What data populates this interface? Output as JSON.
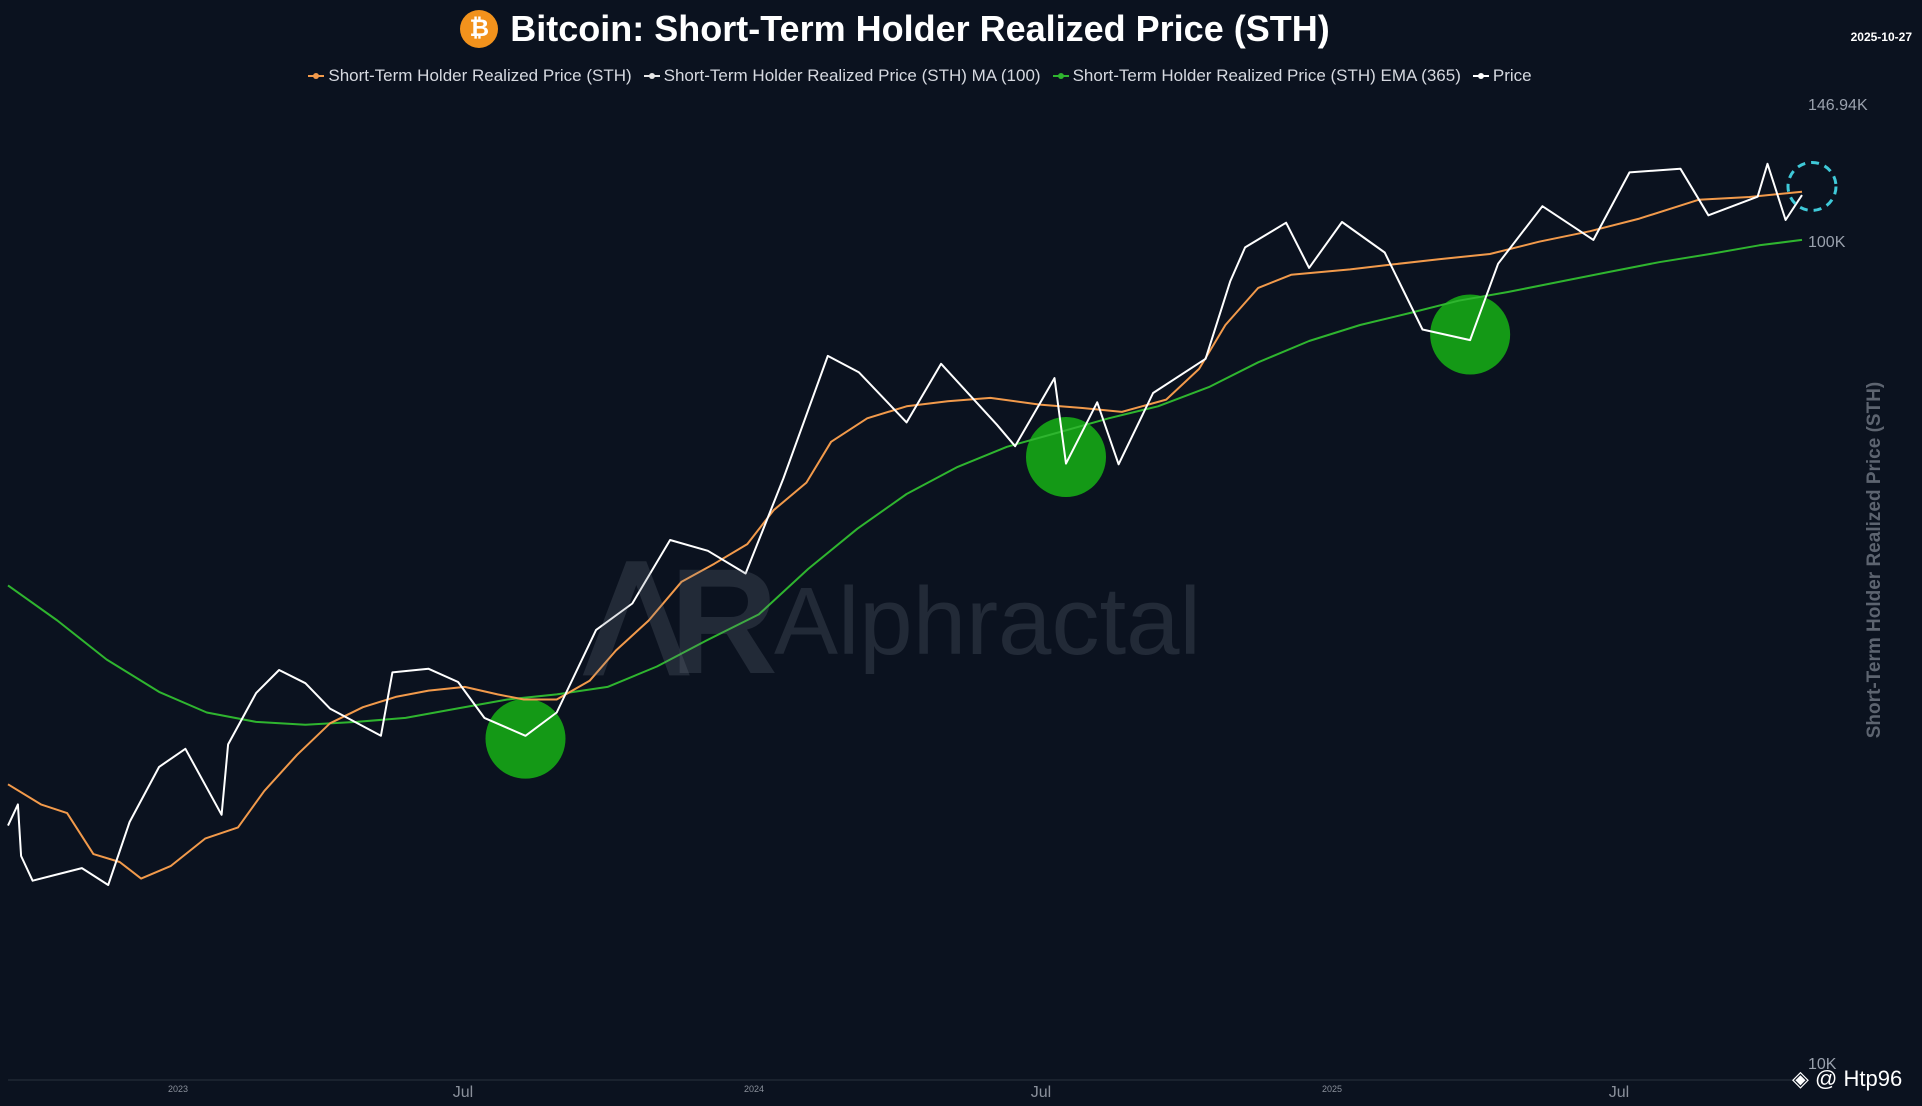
{
  "chart_data": {
    "type": "line",
    "title": "Bitcoin: Short-Term Holder Realized Price (STH)",
    "date": "2025-10-27",
    "ylabel": "Short-Term Holder Realized Price (STH)",
    "y_scale": "log",
    "ylim": [
      10000,
      146940
    ],
    "y_ticks": [
      "146.94K",
      "100K",
      "10K"
    ],
    "x_ticks": [
      "2023",
      "Jul",
      "2024",
      "Jul",
      "2025",
      "Jul"
    ],
    "x_tick_dates": [
      "2023-01-01",
      "2023-07-01",
      "2024-01-01",
      "2024-07-01",
      "2025-01-01",
      "2025-07-01"
    ],
    "xlim": [
      "2022-10-31",
      "2025-10-27"
    ],
    "legend_position": "top-center",
    "series": [
      {
        "name": "Short-Term Holder Realized Price (STH)",
        "color": "#f29a4b",
        "points": [
          [
            "2022-10-31",
            22000
          ],
          [
            "2022-11-20",
            20800
          ],
          [
            "2022-12-06",
            20300
          ],
          [
            "2022-12-22",
            18100
          ],
          [
            "2023-01-07",
            17700
          ],
          [
            "2023-01-20",
            16900
          ],
          [
            "2023-02-07",
            17500
          ],
          [
            "2023-02-28",
            18900
          ],
          [
            "2023-03-20",
            19500
          ],
          [
            "2023-04-05",
            21600
          ],
          [
            "2023-04-25",
            23900
          ],
          [
            "2023-05-15",
            26100
          ],
          [
            "2023-06-04",
            27300
          ],
          [
            "2023-06-24",
            28100
          ],
          [
            "2023-07-14",
            28600
          ],
          [
            "2023-08-05",
            28900
          ],
          [
            "2023-08-25",
            28300
          ],
          [
            "2023-09-10",
            27900
          ],
          [
            "2023-09-30",
            27900
          ],
          [
            "2023-10-20",
            29400
          ],
          [
            "2023-11-05",
            32000
          ],
          [
            "2023-11-25",
            34800
          ],
          [
            "2023-12-15",
            38800
          ],
          [
            "2024-01-04",
            40800
          ],
          [
            "2024-01-24",
            43100
          ],
          [
            "2024-02-09",
            47400
          ],
          [
            "2024-02-29",
            51200
          ],
          [
            "2024-03-15",
            57400
          ],
          [
            "2024-04-06",
            61300
          ],
          [
            "2024-04-30",
            63400
          ],
          [
            "2024-05-25",
            64300
          ],
          [
            "2024-06-20",
            64900
          ],
          [
            "2024-07-20",
            63700
          ],
          [
            "2024-08-15",
            63100
          ],
          [
            "2024-09-08",
            62400
          ],
          [
            "2024-10-05",
            64600
          ],
          [
            "2024-10-25",
            70400
          ],
          [
            "2024-11-10",
            79600
          ],
          [
            "2024-11-30",
            88300
          ],
          [
            "2024-12-20",
            91600
          ],
          [
            "2025-01-25",
            93000
          ],
          [
            "2025-02-20",
            94300
          ],
          [
            "2025-03-20",
            95700
          ],
          [
            "2025-04-20",
            97100
          ],
          [
            "2025-05-20",
            100500
          ],
          [
            "2025-06-20",
            103500
          ],
          [
            "2025-07-20",
            107200
          ],
          [
            "2025-08-25",
            113000
          ],
          [
            "2025-09-25",
            113900
          ],
          [
            "2025-10-27",
            115600
          ]
        ]
      },
      {
        "name": "Short-Term Holder Realized Price (STH) MA (100)",
        "color": "#e6e6e6",
        "points": []
      },
      {
        "name": "Short-Term Holder Realized Price (STH) EMA (365)",
        "color": "#2fb52f",
        "points": [
          [
            "2022-10-31",
            38400
          ],
          [
            "2022-11-30",
            34800
          ],
          [
            "2022-12-30",
            31200
          ],
          [
            "2023-01-31",
            28500
          ],
          [
            "2023-03-01",
            26900
          ],
          [
            "2023-03-31",
            26200
          ],
          [
            "2023-04-30",
            26000
          ],
          [
            "2023-05-31",
            26200
          ],
          [
            "2023-06-30",
            26500
          ],
          [
            "2023-07-31",
            27200
          ],
          [
            "2023-08-31",
            27900
          ],
          [
            "2023-09-30",
            28300
          ],
          [
            "2023-10-31",
            28900
          ],
          [
            "2023-11-30",
            30600
          ],
          [
            "2023-12-30",
            32900
          ],
          [
            "2024-01-31",
            35400
          ],
          [
            "2024-03-01",
            40200
          ],
          [
            "2024-03-31",
            45000
          ],
          [
            "2024-04-30",
            49600
          ],
          [
            "2024-05-31",
            53500
          ],
          [
            "2024-06-30",
            56600
          ],
          [
            "2024-07-31",
            58900
          ],
          [
            "2024-08-31",
            61300
          ],
          [
            "2024-09-30",
            63400
          ],
          [
            "2024-10-31",
            66900
          ],
          [
            "2024-11-30",
            71700
          ],
          [
            "2024-12-31",
            76100
          ],
          [
            "2025-01-31",
            79600
          ],
          [
            "2025-03-02",
            82300
          ],
          [
            "2025-04-01",
            85200
          ],
          [
            "2025-05-01",
            87300
          ],
          [
            "2025-06-01",
            89800
          ],
          [
            "2025-07-01",
            92300
          ],
          [
            "2025-08-01",
            94900
          ],
          [
            "2025-09-01",
            97100
          ],
          [
            "2025-10-01",
            99500
          ],
          [
            "2025-10-27",
            101000
          ]
        ]
      },
      {
        "name": "Price",
        "color": "#ffffff",
        "points": [
          [
            "2022-10-31",
            19600
          ],
          [
            "2022-11-06",
            20800
          ],
          [
            "2022-11-08",
            18000
          ],
          [
            "2022-11-15",
            16800
          ],
          [
            "2022-11-30",
            17100
          ],
          [
            "2022-12-15",
            17400
          ],
          [
            "2022-12-31",
            16600
          ],
          [
            "2023-01-13",
            19800
          ],
          [
            "2023-01-31",
            23100
          ],
          [
            "2023-02-16",
            24300
          ],
          [
            "2023-03-10",
            20200
          ],
          [
            "2023-03-14",
            24600
          ],
          [
            "2023-03-31",
            28400
          ],
          [
            "2023-04-14",
            30300
          ],
          [
            "2023-04-30",
            29200
          ],
          [
            "2023-05-15",
            27200
          ],
          [
            "2023-06-15",
            25200
          ],
          [
            "2023-06-22",
            30100
          ],
          [
            "2023-07-14",
            30400
          ],
          [
            "2023-08-01",
            29300
          ],
          [
            "2023-08-17",
            26500
          ],
          [
            "2023-09-11",
            25200
          ],
          [
            "2023-09-30",
            26900
          ],
          [
            "2023-10-24",
            33900
          ],
          [
            "2023-11-15",
            36500
          ],
          [
            "2023-12-08",
            43600
          ],
          [
            "2023-12-31",
            42300
          ],
          [
            "2024-01-23",
            39700
          ],
          [
            "2024-02-15",
            51800
          ],
          [
            "2024-03-13",
            73000
          ],
          [
            "2024-04-01",
            69700
          ],
          [
            "2024-04-30",
            60600
          ],
          [
            "2024-05-21",
            71400
          ],
          [
            "2024-06-24",
            60200
          ],
          [
            "2024-07-05",
            56700
          ],
          [
            "2024-07-29",
            68600
          ],
          [
            "2024-08-05",
            54000
          ],
          [
            "2024-08-24",
            64100
          ],
          [
            "2024-09-06",
            53900
          ],
          [
            "2024-09-27",
            65800
          ],
          [
            "2024-10-29",
            72400
          ],
          [
            "2024-11-13",
            90000
          ],
          [
            "2024-11-22",
            98900
          ],
          [
            "2024-12-17",
            106000
          ],
          [
            "2024-12-31",
            93400
          ],
          [
            "2025-01-20",
            106200
          ],
          [
            "2025-02-15",
            97500
          ],
          [
            "2025-03-10",
            78600
          ],
          [
            "2025-04-08",
            76300
          ],
          [
            "2025-04-25",
            94500
          ],
          [
            "2025-05-22",
            111000
          ],
          [
            "2025-06-22",
            101000
          ],
          [
            "2025-07-14",
            122000
          ],
          [
            "2025-08-14",
            123300
          ],
          [
            "2025-08-31",
            108200
          ],
          [
            "2025-09-30",
            114000
          ],
          [
            "2025-10-06",
            125000
          ],
          [
            "2025-10-17",
            106800
          ],
          [
            "2025-10-27",
            114500
          ]
        ]
      }
    ],
    "highlight_circles": [
      {
        "date": "2023-09-11",
        "value": 25000,
        "color": "#15a815"
      },
      {
        "date": "2024-08-05",
        "value": 55000,
        "color": "#15a815"
      },
      {
        "date": "2025-04-08",
        "value": 77500,
        "color": "#15a815"
      }
    ],
    "end_marker": {
      "date": "2025-10-27",
      "value": 116000,
      "color": "#3fc9d8",
      "style": "dashed-circle"
    }
  },
  "watermark": "Alphractal",
  "credit": "@ Htp96",
  "icons": {
    "title_icon": "bitcoin-icon",
    "credit_icon": "binance-icon"
  }
}
